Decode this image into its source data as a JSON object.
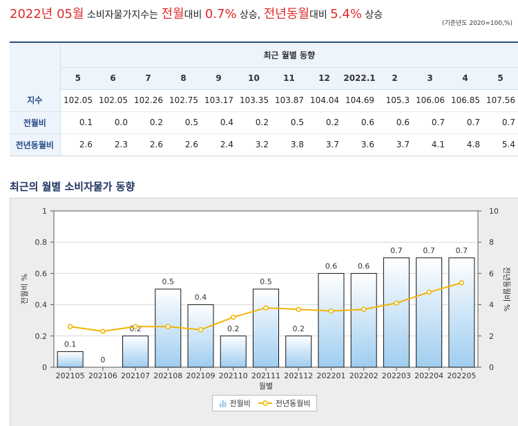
{
  "headline": {
    "date": "2022년 05월",
    "subject": "소비자물가지수는",
    "mom_label": "전월",
    "vs1": "대비",
    "mom_value": "0.7%",
    "rise1": "상승,",
    "yoy_label": "전년동월",
    "vs2": "대비",
    "yoy_value": "5.4%",
    "rise2": "상승"
  },
  "base_note": "(기준년도 2020=100,%)",
  "table": {
    "group_title": "최근 월별 동향",
    "months": [
      "5",
      "6",
      "7",
      "8",
      "9",
      "10",
      "11",
      "12",
      "2022.1",
      "2",
      "3",
      "4",
      "5"
    ],
    "rows": [
      {
        "label": "지수",
        "values": [
          "102.05",
          "102.05",
          "102.26",
          "102.75",
          "103.17",
          "103.35",
          "103.87",
          "104.04",
          "104.69",
          "105.3",
          "106.06",
          "106.85",
          "107.56"
        ]
      },
      {
        "label": "전월비",
        "values": [
          "0.1",
          "0.0",
          "0.2",
          "0.5",
          "0.4",
          "0.2",
          "0.5",
          "0.2",
          "0.6",
          "0.6",
          "0.7",
          "0.7",
          "0.7"
        ]
      },
      {
        "label": "전년동월비",
        "values": [
          "2.6",
          "2.3",
          "2.6",
          "2.6",
          "2.4",
          "3.2",
          "3.8",
          "3.7",
          "3.6",
          "3.7",
          "4.1",
          "4.8",
          "5.4"
        ]
      }
    ]
  },
  "section_title": "최근의 월별 소비자물가 동향",
  "legend": {
    "bar_label": "전월비",
    "line_label": "전년동월비"
  },
  "colors": {
    "accent_red": "#e02b2b",
    "navy": "#1e3560",
    "line": "#f0b400",
    "bar_top": "#ffffff",
    "bar_bottom": "#9fcdf0"
  },
  "chart_data": {
    "type": "bar",
    "categories": [
      "202105",
      "202106",
      "202107",
      "202108",
      "202109",
      "202110",
      "202111",
      "202112",
      "202201",
      "202202",
      "202203",
      "202204",
      "202205"
    ],
    "xlabel": "월별",
    "ylabel": "전월비 %",
    "y2label": "전년동월비 %",
    "ylim": [
      0,
      1
    ],
    "y2lim": [
      0,
      10
    ],
    "yticks": [
      "0",
      "0.2",
      "0.4",
      "0.6",
      "0.8",
      "1"
    ],
    "y2ticks": [
      "0",
      "2",
      "4",
      "6",
      "8",
      "10"
    ],
    "grid": true,
    "legend_position": "bottom",
    "series": [
      {
        "name": "전월비",
        "type": "bar",
        "axis": "left",
        "values": [
          0.1,
          0,
          0.2,
          0.5,
          0.4,
          0.2,
          0.5,
          0.2,
          0.6,
          0.6,
          0.7,
          0.7,
          0.7
        ],
        "labels": [
          "0.1",
          "0",
          "0.2",
          "0.5",
          "0.4",
          "0.2",
          "0.5",
          "0.2",
          "0.6",
          "0.6",
          "0.7",
          "0.7",
          "0.7"
        ]
      },
      {
        "name": "전년동월비",
        "type": "line",
        "axis": "right",
        "values": [
          2.6,
          2.3,
          2.6,
          2.6,
          2.4,
          3.2,
          3.8,
          3.7,
          3.6,
          3.7,
          4.1,
          4.8,
          5.4
        ]
      }
    ]
  }
}
